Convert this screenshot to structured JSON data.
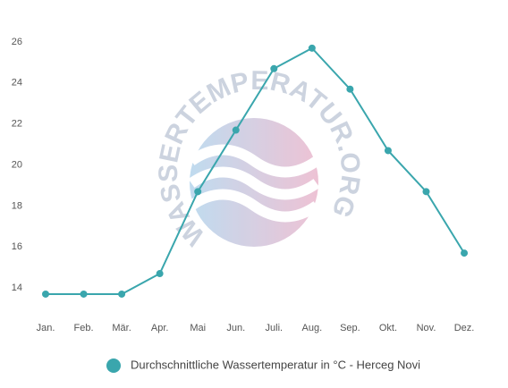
{
  "chart_data": {
    "type": "line",
    "watermark": "WASSERTEMPERATUR.ORG",
    "categories": [
      "Jan.",
      "Feb.",
      "Mär.",
      "Apr.",
      "Mai",
      "Jun.",
      "Juli.",
      "Aug.",
      "Sep.",
      "Okt.",
      "Nov.",
      "Dez."
    ],
    "series": [
      {
        "name": "Durchschnittliche Wassertemperatur in °C - Herceg Novi",
        "color": "#3aa6ad",
        "values": [
          13.7,
          13.7,
          13.7,
          14.7,
          18.7,
          21.7,
          24.7,
          25.7,
          23.7,
          20.7,
          18.7,
          15.7
        ]
      }
    ],
    "ylim": [
      13,
      26.5
    ],
    "yticks": [
      14,
      16,
      18,
      20,
      22,
      24,
      26
    ],
    "grid": false,
    "legend": "bottom"
  }
}
